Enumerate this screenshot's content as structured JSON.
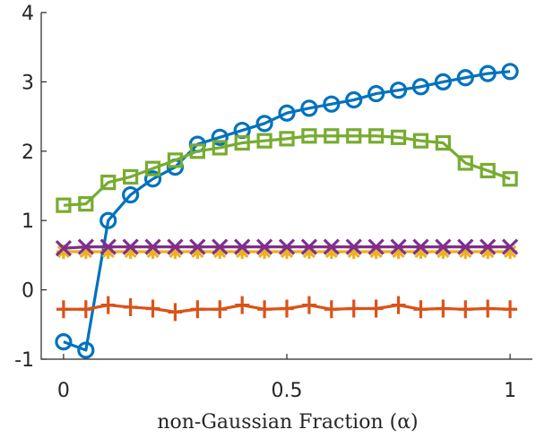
{
  "chart_data": {
    "type": "line",
    "title": "",
    "xlabel": "non-Gaussian Fraction (α)",
    "ylabel": "",
    "xlim": [
      -0.05,
      1.05
    ],
    "ylim": [
      -1,
      4
    ],
    "xticks": [
      0,
      0.5,
      1
    ],
    "xtick_labels": [
      "0",
      "0.5",
      "1"
    ],
    "yticks": [
      -1,
      0,
      1,
      2,
      3,
      4
    ],
    "ytick_labels": [
      "-1",
      "0",
      "1",
      "2",
      "3",
      "4"
    ],
    "grid": false,
    "legend": "none",
    "x": [
      0,
      0.05,
      0.1,
      0.15,
      0.2,
      0.25,
      0.3,
      0.35,
      0.4,
      0.45,
      0.5,
      0.55,
      0.6,
      0.65,
      0.7,
      0.75,
      0.8,
      0.85,
      0.9,
      0.95,
      1.0
    ],
    "series": [
      {
        "marker": "circle",
        "color": "#0072BD",
        "values": [
          -0.75,
          -0.87,
          1.0,
          1.37,
          1.6,
          1.77,
          2.1,
          2.2,
          2.3,
          2.4,
          2.55,
          2.62,
          2.68,
          2.74,
          2.83,
          2.88,
          2.93,
          3.0,
          3.06,
          3.12,
          3.15
        ]
      },
      {
        "marker": "plus",
        "color": "#D95319",
        "values": [
          -0.28,
          -0.28,
          -0.22,
          -0.25,
          -0.27,
          -0.32,
          -0.28,
          -0.28,
          -0.22,
          -0.28,
          -0.27,
          -0.22,
          -0.28,
          -0.27,
          -0.27,
          -0.22,
          -0.28,
          -0.27,
          -0.28,
          -0.27,
          -0.28
        ]
      },
      {
        "marker": "star",
        "color": "#EDB120",
        "values": [
          0.55,
          0.55,
          0.55,
          0.55,
          0.55,
          0.55,
          0.55,
          0.55,
          0.55,
          0.55,
          0.55,
          0.55,
          0.55,
          0.55,
          0.55,
          0.55,
          0.55,
          0.55,
          0.55,
          0.55,
          0.55
        ]
      },
      {
        "marker": "x",
        "color": "#7E2F8E",
        "values": [
          0.6,
          0.62,
          0.62,
          0.62,
          0.62,
          0.62,
          0.62,
          0.62,
          0.62,
          0.62,
          0.62,
          0.62,
          0.62,
          0.62,
          0.62,
          0.62,
          0.62,
          0.62,
          0.62,
          0.62,
          0.62
        ]
      },
      {
        "marker": "square",
        "color": "#77AC30",
        "values": [
          1.22,
          1.24,
          1.55,
          1.63,
          1.75,
          1.87,
          2.0,
          2.05,
          2.12,
          2.15,
          2.18,
          2.22,
          2.22,
          2.22,
          2.22,
          2.2,
          2.15,
          2.12,
          1.83,
          1.72,
          1.6
        ]
      }
    ]
  }
}
